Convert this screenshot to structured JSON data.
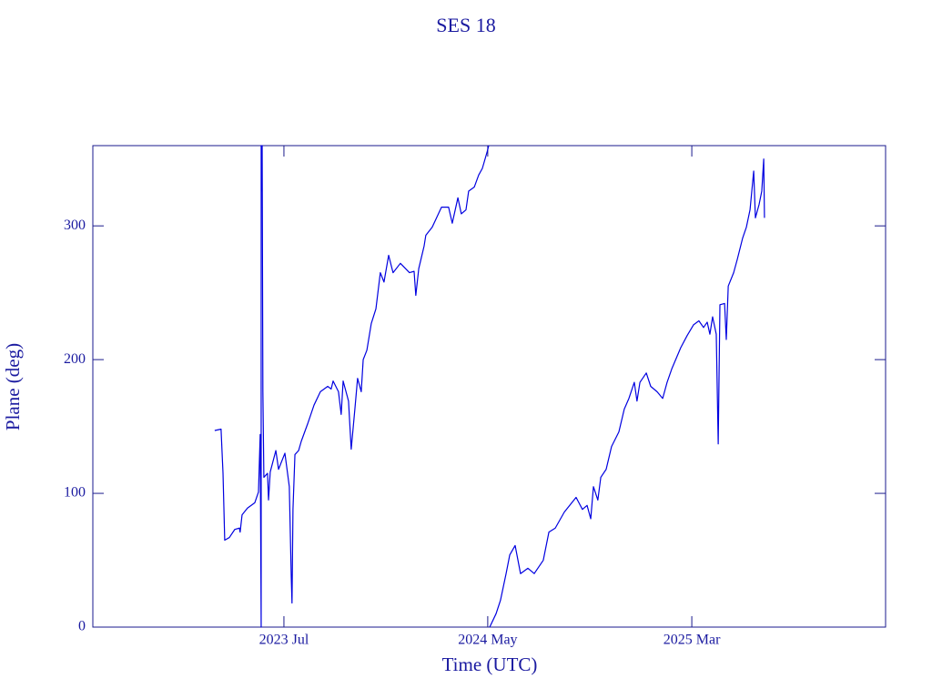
{
  "chart_data": {
    "type": "line",
    "title": "SES 18",
    "x_label": "Time (UTC)",
    "y_label": "Plane (deg)",
    "xlim": [
      2022.719,
      2025.959
    ],
    "ylim": [
      0,
      360
    ],
    "xticks": [
      {
        "value": 2023.5,
        "label": "2023 Jul"
      },
      {
        "value": 2024.333,
        "label": "2024 May"
      },
      {
        "value": 2025.167,
        "label": "2025 Mar"
      }
    ],
    "yticks": [
      0,
      100,
      200,
      300
    ],
    "x": [
      2023.217,
      2023.243,
      2023.251,
      2023.258,
      2023.277,
      2023.299,
      2023.318,
      2023.321,
      2023.329,
      2023.351,
      2023.381,
      2023.396,
      2023.403,
      2023.407,
      2023.407,
      2023.411,
      2023.411,
      2023.414,
      2023.418,
      2023.433,
      2023.437,
      2023.444,
      2023.467,
      2023.478,
      2023.504,
      2023.522,
      2023.53,
      2023.533,
      2023.537,
      2023.545,
      2023.56,
      2023.571,
      2023.597,
      2023.623,
      2023.649,
      2023.679,
      2023.693,
      2023.701,
      2023.723,
      2023.734,
      2023.742,
      2023.764,
      2023.775,
      2023.79,
      2023.801,
      2023.816,
      2023.824,
      2023.839,
      2023.857,
      2023.876,
      2023.894,
      2023.909,
      2023.928,
      2023.946,
      2023.976,
      2024.013,
      2024.032,
      2024.039,
      2024.051,
      2024.073,
      2024.08,
      2024.106,
      2024.144,
      2024.173,
      2024.188,
      2024.211,
      2024.225,
      2024.244,
      2024.255,
      2024.278,
      2024.296,
      2024.311,
      2024.33,
      2024.337,
      null,
      2024.341,
      2024.367,
      2024.385,
      2024.408,
      2024.423,
      2024.445,
      2024.467,
      2024.497,
      2024.523,
      2024.56,
      2024.583,
      2024.609,
      2024.646,
      2024.694,
      2024.72,
      2024.739,
      2024.754,
      2024.765,
      2024.783,
      2024.795,
      2024.817,
      2024.839,
      2024.869,
      2024.891,
      2024.91,
      2024.932,
      2024.943,
      2024.955,
      2024.981,
      2024.999,
      2025.025,
      2025.048,
      2025.066,
      2025.085,
      2025.122,
      2025.148,
      2025.174,
      2025.196,
      2025.215,
      2025.23,
      2025.241,
      2025.252,
      2025.267,
      2025.275,
      2025.282,
      2025.301,
      2025.308,
      2025.316,
      2025.338,
      2025.353,
      2025.375,
      2025.39,
      2025.405,
      2025.42,
      2025.427,
      2025.442,
      2025.453,
      2025.461,
      2025.464
    ],
    "series": [
      {
        "name": "Plane",
        "color": "#0000e0",
        "values": [
          147,
          148,
          115,
          65,
          67,
          73,
          74,
          71,
          84,
          89,
          93,
          101,
          144,
          0,
          360,
          326,
          360,
          176,
          112,
          115,
          95,
          116,
          132,
          118,
          130,
          105,
          37,
          18,
          88,
          129,
          132,
          139,
          152,
          166,
          176,
          180,
          178,
          184,
          176,
          159,
          184,
          169,
          133,
          163,
          186,
          176,
          200,
          207,
          227,
          238,
          265,
          258,
          278,
          265,
          272,
          265,
          266,
          248,
          268,
          285,
          293,
          299,
          314,
          314,
          302,
          321,
          309,
          312,
          326,
          329,
          338,
          343,
          355,
          360,
          null,
          0,
          10,
          20,
          40,
          54,
          61,
          40,
          44,
          40,
          50,
          71,
          74,
          86,
          97,
          88,
          91,
          81,
          105,
          95,
          112,
          118,
          135,
          146,
          163,
          171,
          183,
          169,
          183,
          190,
          180,
          176,
          171,
          183,
          193,
          209,
          218,
          226,
          229,
          224,
          228,
          219,
          232,
          219,
          137,
          241,
          242,
          215,
          255,
          265,
          275,
          291,
          299,
          312,
          341,
          306,
          316,
          326,
          350,
          306
        ]
      }
    ]
  }
}
